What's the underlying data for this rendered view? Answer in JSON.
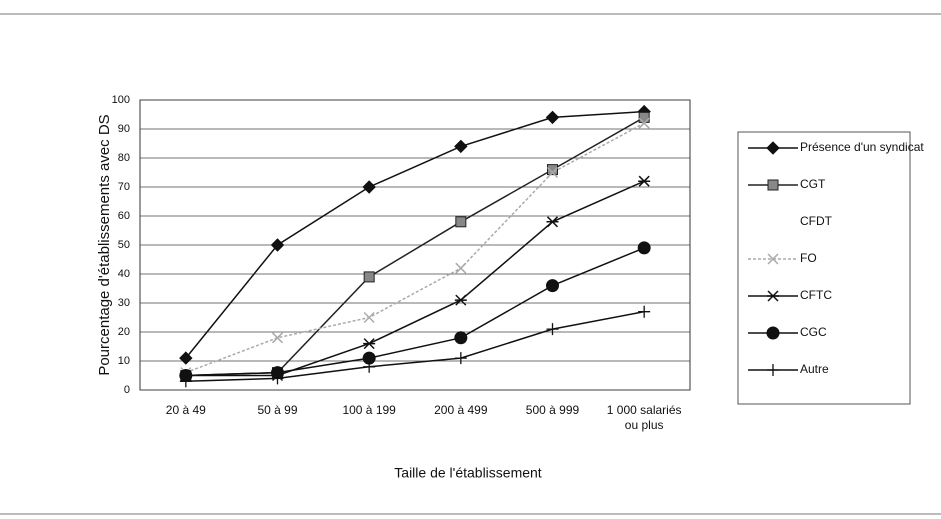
{
  "chart_data": {
    "type": "line",
    "xlabel": "Taille de l'établissement",
    "ylabel": "Pourcentage d'établissements avec DS",
    "categories": [
      "20 à 49",
      "50 à 99",
      "100 à 199",
      "200 à 499",
      "500 à 999",
      "1 000 salariés ou plus"
    ],
    "ylim": [
      0,
      100
    ],
    "yticks": [
      0,
      10,
      20,
      30,
      40,
      50,
      60,
      70,
      80,
      90,
      100
    ],
    "grid": true,
    "legend": "right",
    "series": [
      {
        "name": "Présence d'un syndicat",
        "color": "#111111",
        "marker": "diamond",
        "values": [
          11,
          50,
          70,
          84,
          94,
          96
        ]
      },
      {
        "name": "CGT",
        "color": "#222222",
        "marker": "square",
        "values": [
          5,
          6,
          39,
          58,
          76,
          94
        ]
      },
      {
        "name": "CFDT",
        "color": "#222222",
        "marker": "none",
        "values": [
          null,
          null,
          null,
          null,
          null,
          null
        ]
      },
      {
        "name": "FO",
        "color": "#aaaaaa",
        "marker": "bowtie",
        "dash": true,
        "values": [
          6,
          18,
          25,
          42,
          75,
          92
        ]
      },
      {
        "name": "CFTC",
        "color": "#111111",
        "marker": "star",
        "values": [
          5,
          5,
          16,
          31,
          58,
          72
        ]
      },
      {
        "name": "CGC",
        "color": "#111111",
        "marker": "circle",
        "values": [
          5,
          6,
          11,
          18,
          36,
          49
        ]
      },
      {
        "name": "Autre",
        "color": "#111111",
        "marker": "plus",
        "values": [
          3,
          4,
          8,
          11,
          21,
          27
        ]
      }
    ]
  }
}
